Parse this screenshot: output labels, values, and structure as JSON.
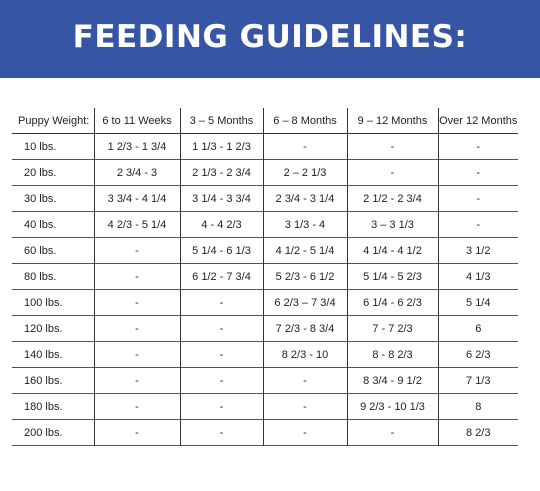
{
  "title": "FEEDING GUIDELINES:",
  "colors": {
    "banner": "#3656a5",
    "text": "#222222"
  },
  "headers": [
    "Puppy Weight:",
    "6 to 11 Weeks",
    "3 – 5 Months",
    "6 – 8 Months",
    "9 – 12 Months",
    "Over 12 Months"
  ],
  "rows": [
    [
      "10 lbs.",
      "1 2/3 - 1 3/4",
      "1 1/3 -  1 2/3",
      "-",
      "-",
      "-"
    ],
    [
      "20 lbs.",
      "2 3/4 - 3",
      "2 1/3 - 2 3/4",
      "2 – 2 1/3",
      "-",
      "-"
    ],
    [
      "30 lbs.",
      "3 3/4 - 4 1/4",
      "3 1/4 - 3 3/4",
      "2 3/4 - 3 1/4",
      "2 1/2 - 2 3/4",
      "-"
    ],
    [
      "40 lbs.",
      "4 2/3 - 5 1/4",
      "4  - 4 2/3",
      "3 1/3 - 4",
      "3 – 3 1/3",
      "-"
    ],
    [
      "60 lbs.",
      "-",
      "5 1/4 - 6 1/3",
      "4 1/2 - 5 1/4",
      "4 1/4 - 4 1/2",
      "3 1/2"
    ],
    [
      "80 lbs.",
      "-",
      "6 1/2 - 7 3/4",
      "5 2/3 - 6 1/2",
      "5 1/4 - 5 2/3",
      "4 1/3"
    ],
    [
      "100 lbs.",
      "-",
      "-",
      "6 2/3 – 7 3/4",
      "6 1/4 - 6 2/3",
      "5 1/4"
    ],
    [
      "120 lbs.",
      "-",
      "-",
      "7 2/3 - 8 3/4",
      "7 - 7 2/3",
      "6"
    ],
    [
      "140 lbs.",
      "-",
      "-",
      "8 2/3 - 10",
      "8 - 8 2/3",
      "6 2/3"
    ],
    [
      "160 lbs.",
      "-",
      "-",
      "-",
      "8 3/4 - 9 1/2",
      "7 1/3"
    ],
    [
      "180 lbs.",
      "-",
      "-",
      "-",
      "9 2/3 - 10 1/3",
      "8"
    ],
    [
      "200 lbs.",
      "-",
      "-",
      "-",
      "-",
      "8 2/3"
    ]
  ]
}
